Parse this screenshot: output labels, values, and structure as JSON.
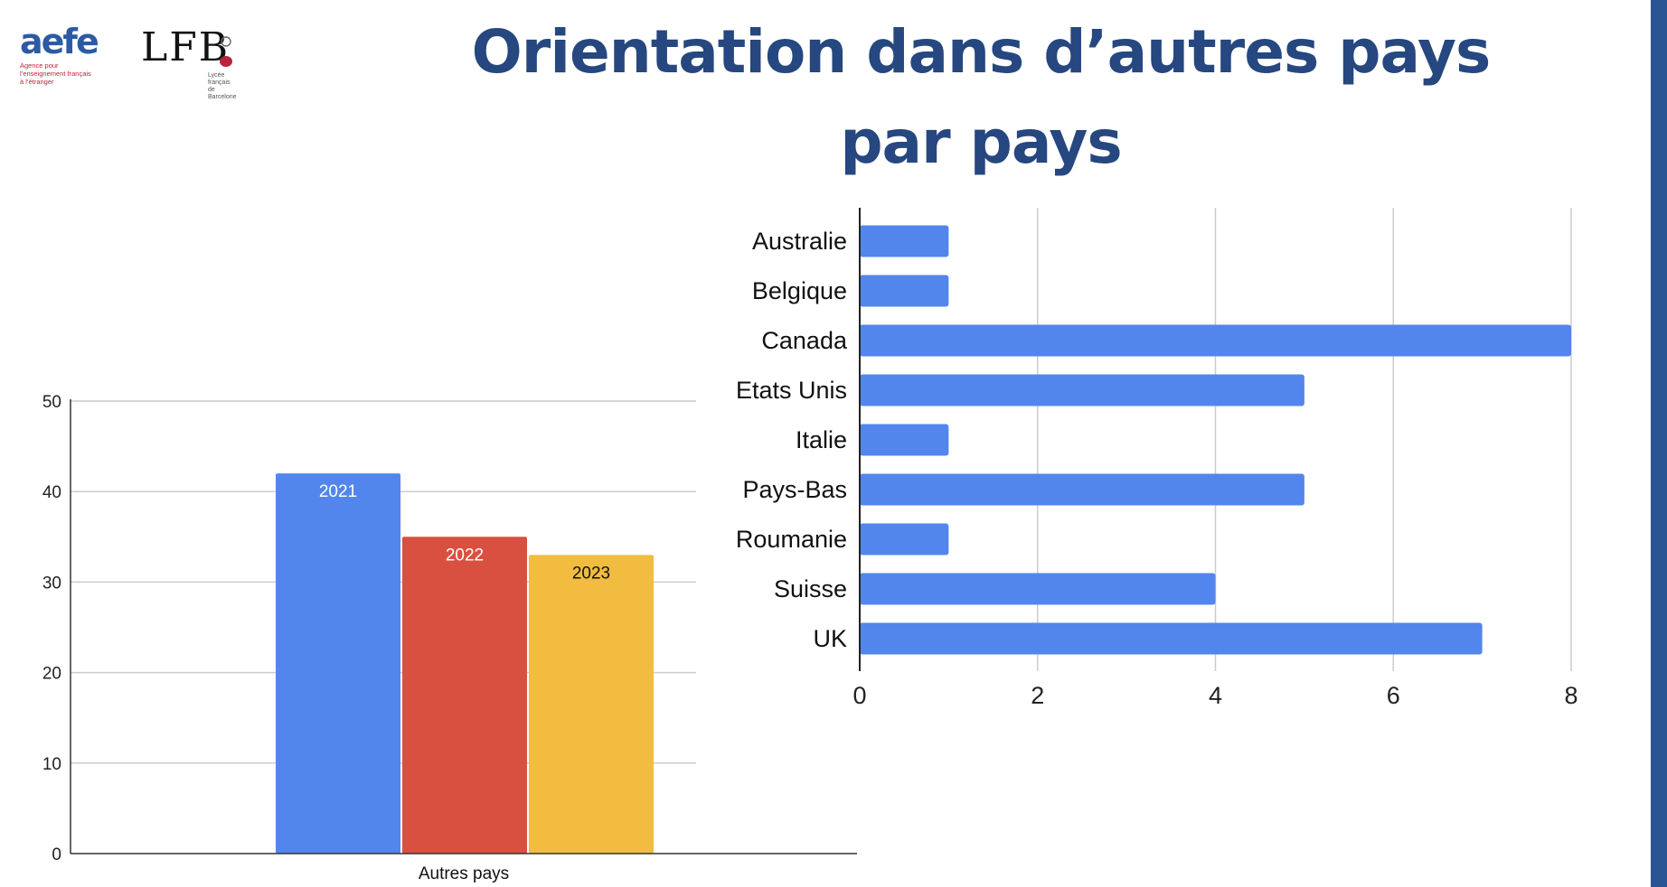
{
  "header": {
    "title_line1": "Orientation dans d’autres pays",
    "title_line2": "par pays"
  },
  "logos": {
    "aefe": {
      "text": "aefe",
      "tagline": [
        "Agence pour",
        "l’enseignement français",
        "à l’étranger"
      ],
      "color": "#2c5ba3",
      "accent": "#c0203a"
    },
    "lfb": {
      "text": "LFB",
      "tagline": [
        "Lycée français",
        "de Barcelone"
      ]
    }
  },
  "theme": {
    "title_color": "#26477f",
    "stripe_color": "#2a5594"
  },
  "chart_data": [
    {
      "type": "bar",
      "orientation": "vertical",
      "categories": [
        "Autres pays"
      ],
      "series": [
        {
          "name": "2021",
          "values": [
            42
          ],
          "color": "#5286ec",
          "label_color": "#ffffff"
        },
        {
          "name": "2022",
          "values": [
            35
          ],
          "color": "#d95040",
          "label_color": "#ffffff"
        },
        {
          "name": "2023",
          "values": [
            33
          ],
          "color": "#f1bc40",
          "label_color": "#111111"
        }
      ],
      "ylim": [
        0,
        50
      ],
      "yticks": [
        0,
        10,
        20,
        30,
        40,
        50
      ],
      "grid": true,
      "legend": "none"
    },
    {
      "type": "bar",
      "orientation": "horizontal",
      "categories": [
        "Australie",
        "Belgique",
        "Canada",
        "Etats Unis",
        "Italie",
        "Pays-Bas",
        "Roumanie",
        "Suisse",
        "UK"
      ],
      "values": [
        1,
        1,
        8,
        5,
        1,
        5,
        1,
        4,
        7
      ],
      "color": "#5286ec",
      "xlim": [
        0,
        8
      ],
      "xticks": [
        0,
        2,
        4,
        6,
        8
      ],
      "grid": true,
      "legend": "none"
    }
  ]
}
